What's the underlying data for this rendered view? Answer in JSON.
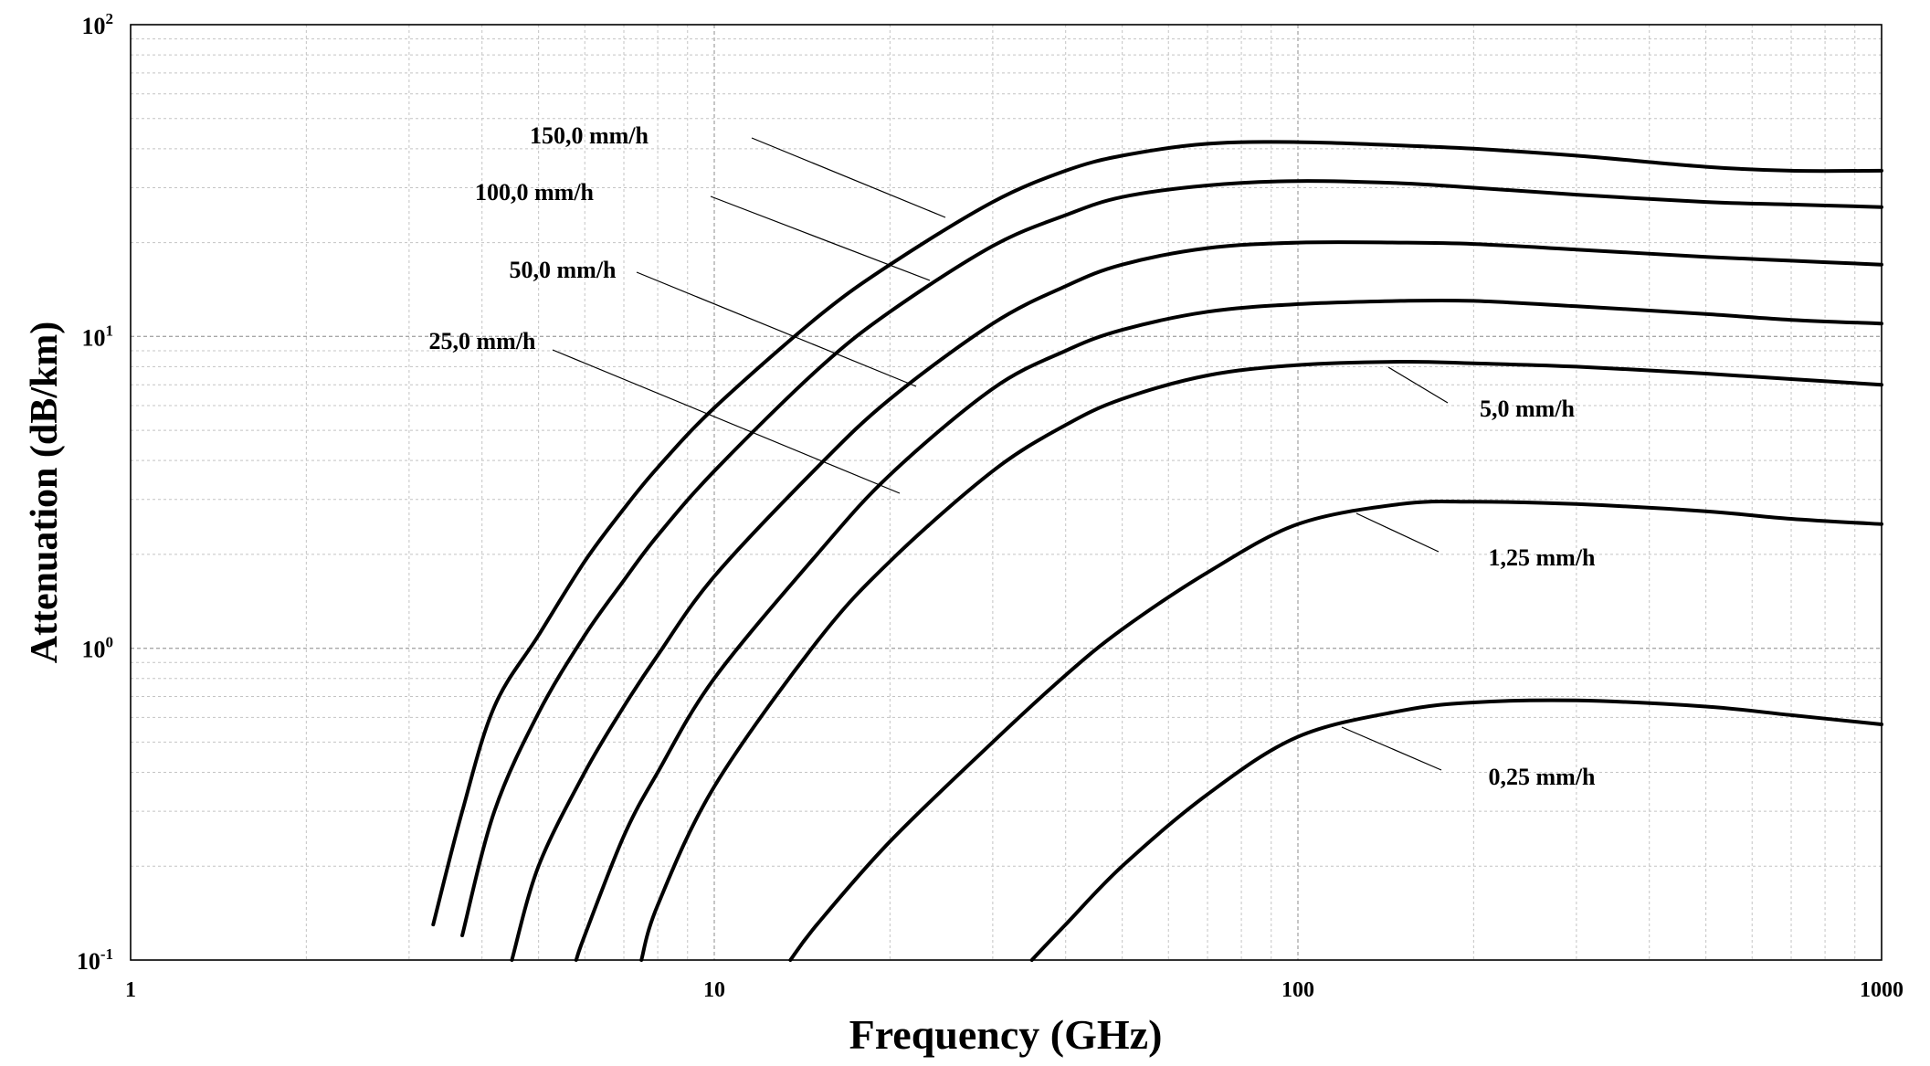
{
  "chart_data": {
    "type": "line",
    "title": "",
    "xlabel": "Frequency (GHz)",
    "ylabel": "Attenuation (dB/km)",
    "x_scale": "log",
    "y_scale": "log",
    "xlim": [
      1,
      1000
    ],
    "ylim": [
      0.1,
      100
    ],
    "grid": true,
    "legend": "inline labels",
    "x_tick_labels": [
      "1",
      "10",
      "100",
      "1000"
    ],
    "y_tick_labels": [
      {
        "base": "10",
        "exp": "-1"
      },
      {
        "base": "10",
        "exp": "0"
      },
      {
        "base": "10",
        "exp": "1"
      },
      {
        "base": "10",
        "exp": "2"
      }
    ],
    "series": [
      {
        "name": "150,0 mm/h",
        "x": [
          3.3,
          3.7,
          4.2,
          5,
          6,
          7,
          8,
          10,
          15,
          20,
          30,
          40,
          50,
          70,
          100,
          150,
          200,
          300,
          500,
          700,
          1000
        ],
        "y": [
          0.13,
          0.3,
          0.65,
          1.1,
          1.9,
          2.8,
          3.8,
          5.9,
          11.5,
          17,
          27,
          34,
          38,
          41.5,
          42,
          41,
          40,
          38,
          35,
          34,
          34
        ]
      },
      {
        "name": "100,0 mm/h",
        "x": [
          3.7,
          4.2,
          5,
          6,
          7,
          8,
          10,
          15,
          20,
          30,
          40,
          50,
          70,
          100,
          150,
          200,
          300,
          500,
          700,
          1000
        ],
        "y": [
          0.12,
          0.3,
          0.62,
          1.1,
          1.65,
          2.3,
          3.7,
          7.8,
          12,
          19.5,
          24.5,
          28,
          30.5,
          31.5,
          31,
          30,
          28.5,
          27,
          26.5,
          26
        ]
      },
      {
        "name": "50,0 mm/h",
        "x": [
          4.5,
          5,
          6,
          7,
          8,
          10,
          15,
          20,
          30,
          40,
          50,
          70,
          100,
          150,
          200,
          300,
          500,
          700,
          1000
        ],
        "y": [
          0.1,
          0.2,
          0.4,
          0.65,
          0.95,
          1.7,
          3.8,
          6.3,
          11,
          14.5,
          17,
          19.2,
          20,
          20,
          19.8,
          19,
          18,
          17.5,
          17
        ]
      },
      {
        "name": "25,0 mm/h",
        "x": [
          5.8,
          6,
          7,
          8,
          10,
          15,
          20,
          30,
          40,
          50,
          70,
          100,
          150,
          200,
          300,
          500,
          700,
          1000
        ],
        "y": [
          0.1,
          0.12,
          0.25,
          0.4,
          0.8,
          2,
          3.6,
          6.8,
          9,
          10.5,
          12,
          12.7,
          13,
          13,
          12.5,
          11.8,
          11.3,
          11
        ]
      },
      {
        "name": "5,0 mm/h",
        "x": [
          7.5,
          8,
          10,
          15,
          20,
          30,
          40,
          50,
          70,
          100,
          150,
          200,
          300,
          500,
          700,
          1000
        ],
        "y": [
          0.1,
          0.15,
          0.36,
          1.05,
          1.9,
          3.7,
          5.2,
          6.3,
          7.5,
          8.1,
          8.3,
          8.2,
          8,
          7.6,
          7.3,
          7
        ]
      },
      {
        "name": "1,25 mm/h",
        "x": [
          13.5,
          15,
          20,
          30,
          40,
          50,
          70,
          100,
          150,
          200,
          300,
          500,
          700,
          1000
        ],
        "y": [
          0.1,
          0.13,
          0.24,
          0.5,
          0.82,
          1.15,
          1.75,
          2.5,
          2.9,
          2.95,
          2.9,
          2.75,
          2.6,
          2.5
        ]
      },
      {
        "name": "0,25 mm/h",
        "x": [
          35,
          40,
          50,
          70,
          100,
          150,
          200,
          300,
          500,
          700,
          1000
        ],
        "y": [
          0.1,
          0.13,
          0.2,
          0.34,
          0.52,
          0.63,
          0.67,
          0.68,
          0.65,
          0.61,
          0.57
        ]
      }
    ]
  }
}
